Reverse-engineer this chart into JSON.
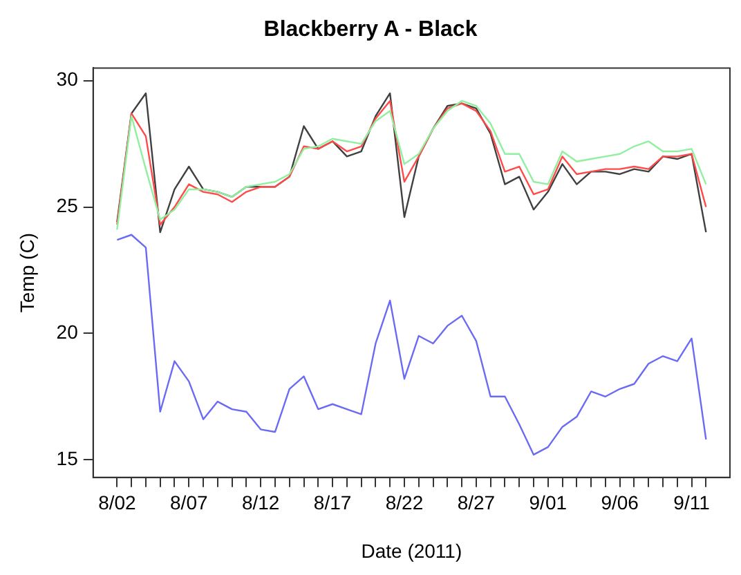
{
  "chart_data": {
    "type": "line",
    "title": "Blackberry A - Black",
    "xlabel": "Date (2011)",
    "ylabel": "Temp (C)",
    "x": [
      "2011-08-02",
      "2011-08-03",
      "2011-08-04",
      "2011-08-05",
      "2011-08-06",
      "2011-08-07",
      "2011-08-08",
      "2011-08-09",
      "2011-08-10",
      "2011-08-11",
      "2011-08-12",
      "2011-08-13",
      "2011-08-14",
      "2011-08-15",
      "2011-08-16",
      "2011-08-17",
      "2011-08-18",
      "2011-08-19",
      "2011-08-20",
      "2011-08-21",
      "2011-08-22",
      "2011-08-23",
      "2011-08-24",
      "2011-08-25",
      "2011-08-26",
      "2011-08-27",
      "2011-08-28",
      "2011-08-29",
      "2011-08-30",
      "2011-08-31",
      "2011-09-01",
      "2011-09-02",
      "2011-09-03",
      "2011-09-04",
      "2011-09-05",
      "2011-09-06",
      "2011-09-07",
      "2011-09-08",
      "2011-09-09",
      "2011-09-10",
      "2011-09-11",
      "2011-09-12"
    ],
    "series": [
      {
        "color": "#90f0a0",
        "values": [
          24.1,
          28.6,
          26.5,
          24.5,
          24.9,
          25.7,
          25.7,
          25.6,
          25.4,
          25.8,
          25.9,
          26.0,
          26.3,
          27.3,
          27.4,
          27.7,
          27.6,
          27.5,
          28.4,
          28.8,
          26.7,
          27.1,
          28.1,
          28.8,
          29.2,
          29.0,
          28.3,
          27.1,
          27.1,
          26.0,
          25.9,
          27.2,
          26.8,
          26.9,
          27.0,
          27.1,
          27.4,
          27.6,
          27.2,
          27.2,
          27.3,
          25.9
        ]
      },
      {
        "color": "#ff4a4a",
        "values": [
          24.3,
          28.7,
          27.8,
          24.3,
          25.0,
          25.9,
          25.6,
          25.5,
          25.2,
          25.6,
          25.8,
          25.8,
          26.2,
          27.4,
          27.3,
          27.6,
          27.2,
          27.4,
          28.5,
          29.2,
          26.0,
          27.0,
          28.1,
          28.9,
          29.1,
          28.8,
          28.0,
          26.4,
          26.6,
          25.5,
          25.7,
          27.0,
          26.3,
          26.4,
          26.5,
          26.5,
          26.6,
          26.5,
          27.0,
          27.0,
          27.1,
          25.0
        ]
      },
      {
        "color": "#404040",
        "values": [
          24.4,
          28.7,
          29.5,
          24.0,
          25.7,
          26.6,
          25.7,
          25.6,
          25.4,
          25.8,
          25.8,
          25.8,
          26.2,
          28.2,
          27.3,
          27.6,
          27.0,
          27.2,
          28.6,
          29.5,
          24.6,
          27.0,
          28.1,
          29.0,
          29.1,
          28.9,
          27.9,
          25.9,
          26.2,
          24.9,
          25.6,
          26.7,
          25.9,
          26.4,
          26.4,
          26.3,
          26.5,
          26.4,
          27.0,
          26.9,
          27.1,
          24.0
        ]
      },
      {
        "color": "#6a6af5",
        "values": [
          23.7,
          23.9,
          23.4,
          16.9,
          18.9,
          18.1,
          16.6,
          17.3,
          17.0,
          16.9,
          16.2,
          16.1,
          17.8,
          18.3,
          17.0,
          17.2,
          17.0,
          16.8,
          19.6,
          21.3,
          18.2,
          19.9,
          19.6,
          20.3,
          20.7,
          19.7,
          17.5,
          17.5,
          16.4,
          15.2,
          15.5,
          16.3,
          16.7,
          17.7,
          17.5,
          17.8,
          18.0,
          18.8,
          19.1,
          18.9,
          19.8,
          15.8
        ]
      }
    ],
    "xlim": [
      "2011-07-31T08:00",
      "2011-09-13T16:00"
    ],
    "xticks": [
      {
        "value": "2011-08-02",
        "label": "8/02"
      },
      {
        "value": "2011-08-03",
        "label": null
      },
      {
        "value": "2011-08-04",
        "label": null
      },
      {
        "value": "2011-08-05",
        "label": null
      },
      {
        "value": "2011-08-06",
        "label": null
      },
      {
        "value": "2011-08-07",
        "label": "8/07"
      },
      {
        "value": "2011-08-08",
        "label": null
      },
      {
        "value": "2011-08-09",
        "label": null
      },
      {
        "value": "2011-08-10",
        "label": null
      },
      {
        "value": "2011-08-11",
        "label": null
      },
      {
        "value": "2011-08-12",
        "label": "8/12"
      },
      {
        "value": "2011-08-13",
        "label": null
      },
      {
        "value": "2011-08-14",
        "label": null
      },
      {
        "value": "2011-08-15",
        "label": null
      },
      {
        "value": "2011-08-16",
        "label": null
      },
      {
        "value": "2011-08-17",
        "label": "8/17"
      },
      {
        "value": "2011-08-18",
        "label": null
      },
      {
        "value": "2011-08-19",
        "label": null
      },
      {
        "value": "2011-08-20",
        "label": null
      },
      {
        "value": "2011-08-21",
        "label": null
      },
      {
        "value": "2011-08-22",
        "label": "8/22"
      },
      {
        "value": "2011-08-23",
        "label": null
      },
      {
        "value": "2011-08-24",
        "label": null
      },
      {
        "value": "2011-08-25",
        "label": null
      },
      {
        "value": "2011-08-26",
        "label": null
      },
      {
        "value": "2011-08-27",
        "label": "8/27"
      },
      {
        "value": "2011-08-28",
        "label": null
      },
      {
        "value": "2011-08-29",
        "label": null
      },
      {
        "value": "2011-08-30",
        "label": null
      },
      {
        "value": "2011-08-31",
        "label": null
      },
      {
        "value": "2011-09-01",
        "label": "9/01"
      },
      {
        "value": "2011-09-02",
        "label": null
      },
      {
        "value": "2011-09-03",
        "label": null
      },
      {
        "value": "2011-09-04",
        "label": null
      },
      {
        "value": "2011-09-05",
        "label": null
      },
      {
        "value": "2011-09-06",
        "label": "9/06"
      },
      {
        "value": "2011-09-07",
        "label": null
      },
      {
        "value": "2011-09-08",
        "label": null
      },
      {
        "value": "2011-09-09",
        "label": null
      },
      {
        "value": "2011-09-10",
        "label": null
      },
      {
        "value": "2011-09-11",
        "label": "9/11"
      },
      {
        "value": "2011-09-12",
        "label": null
      }
    ],
    "ylim": [
      14.3,
      30.5
    ],
    "yticks": [
      15,
      20,
      25,
      30
    ],
    "grid": false,
    "legend": false,
    "marker": "none",
    "line_style": "solid"
  }
}
